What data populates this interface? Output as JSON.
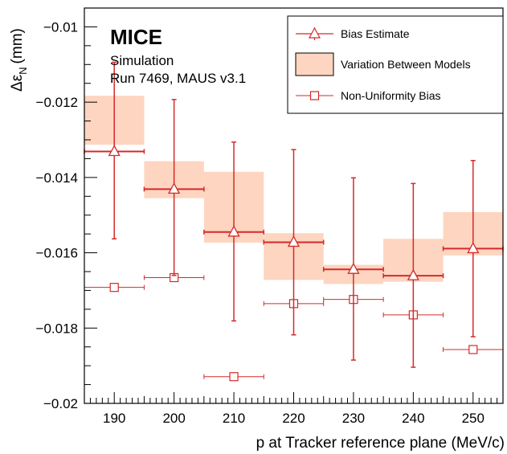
{
  "chart_data": {
    "type": "scatter",
    "xlabel": "p at Tracker reference plane (MeV/c)",
    "ylabel_main": "Δε",
    "ylabel_sub": "N",
    "ylabel_unit": "(mm)",
    "xlim": [
      185,
      255
    ],
    "ylim": [
      -0.02,
      -0.0095
    ],
    "x_ticks": [
      190,
      200,
      210,
      220,
      230,
      240,
      250
    ],
    "y_ticks": [
      -0.02,
      -0.018,
      -0.016,
      -0.014,
      -0.012,
      -0.01
    ],
    "y_tick_labels": [
      "−0.02",
      "−0.018",
      "−0.016",
      "−0.014",
      "−0.012",
      "−0.01"
    ],
    "annotation": {
      "title": "MICE",
      "line1": "Simulation",
      "line2": "Run 7469, MAUS v3.1"
    },
    "legend": {
      "placement": "top-right",
      "entries": [
        "Bias Estimate",
        "Variation Between Models",
        "Non-Uniformity Bias"
      ]
    },
    "colors": {
      "marker": "#d42a2a",
      "band": "#fdd5c0"
    },
    "bands": [
      {
        "x0": 185,
        "x1": 195,
        "y0": -0.01313,
        "y1": -0.01183
      },
      {
        "x0": 195,
        "x1": 205,
        "y0": -0.01455,
        "y1": -0.01357
      },
      {
        "x0": 205,
        "x1": 215,
        "y0": -0.01573,
        "y1": -0.01385
      },
      {
        "x0": 215,
        "x1": 225,
        "y0": -0.01672,
        "y1": -0.01548
      },
      {
        "x0": 225,
        "x1": 235,
        "y0": -0.01683,
        "y1": -0.01632
      },
      {
        "x0": 235,
        "x1": 245,
        "y0": -0.01677,
        "y1": -0.01563
      },
      {
        "x0": 245,
        "x1": 255,
        "y0": -0.01607,
        "y1": -0.01492
      }
    ],
    "series": [
      {
        "name": "Bias Estimate",
        "marker": "triangle-open",
        "points": [
          {
            "x": 190,
            "y": -0.01331,
            "yerr_low": -0.01563,
            "yerr_high": -0.01094,
            "xerr": 5
          },
          {
            "x": 200,
            "y": -0.01431,
            "yerr_low": -0.0166,
            "yerr_high": -0.01193,
            "xerr": 5
          },
          {
            "x": 210,
            "y": -0.01545,
            "yerr_low": -0.01781,
            "yerr_high": -0.01306,
            "xerr": 5
          },
          {
            "x": 220,
            "y": -0.01572,
            "yerr_low": -0.01818,
            "yerr_high": -0.01326,
            "xerr": 5
          },
          {
            "x": 230,
            "y": -0.01644,
            "yerr_low": -0.01885,
            "yerr_high": -0.01401,
            "xerr": 5
          },
          {
            "x": 240,
            "y": -0.01661,
            "yerr_low": -0.01904,
            "yerr_high": -0.01416,
            "xerr": 5
          },
          {
            "x": 250,
            "y": -0.01589,
            "yerr_low": -0.01823,
            "yerr_high": -0.01355,
            "xerr": 5
          }
        ]
      },
      {
        "name": "Non-Uniformity Bias",
        "marker": "square-open",
        "points": [
          {
            "x": 190,
            "y": -0.01692,
            "xerr": 5
          },
          {
            "x": 200,
            "y": -0.01666,
            "xerr": 5
          },
          {
            "x": 210,
            "y": -0.01929,
            "xerr": 5
          },
          {
            "x": 220,
            "y": -0.01735,
            "xerr": 5
          },
          {
            "x": 230,
            "y": -0.01724,
            "xerr": 5
          },
          {
            "x": 240,
            "y": -0.01765,
            "xerr": 5
          },
          {
            "x": 250,
            "y": -0.01857,
            "xerr": 5
          }
        ]
      }
    ]
  }
}
